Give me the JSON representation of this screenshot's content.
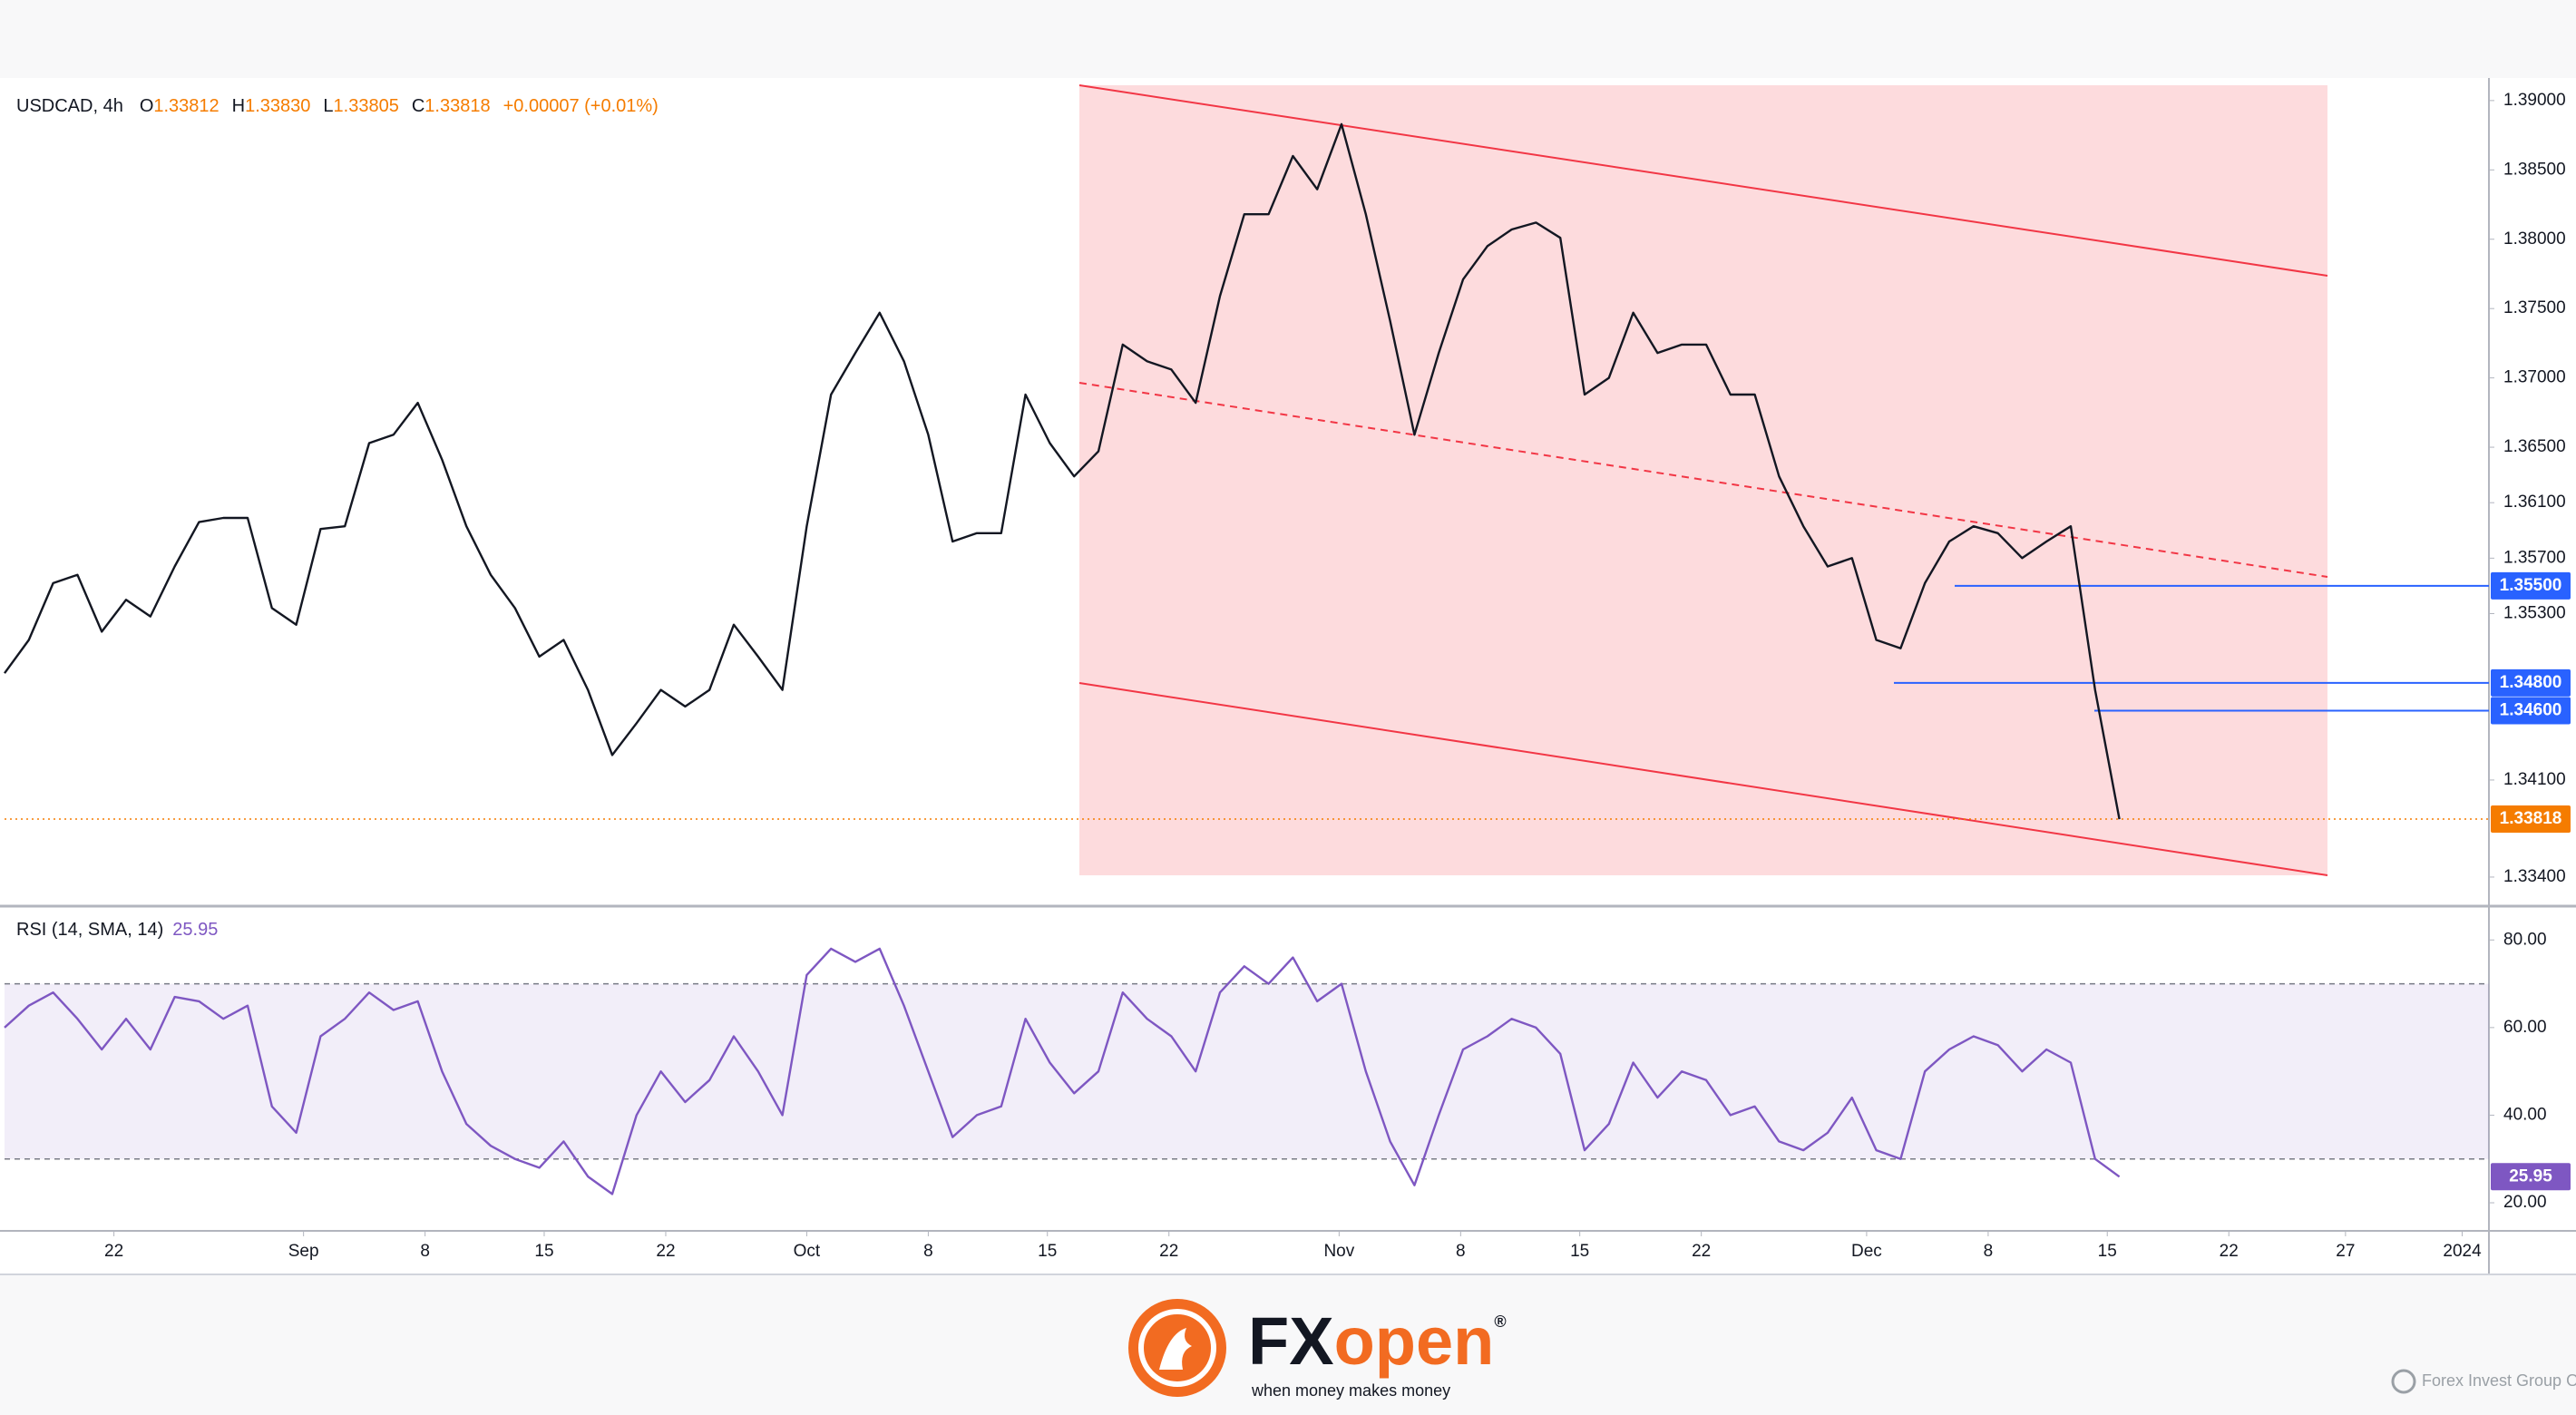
{
  "chart_data": [
    {
      "type": "line",
      "title": "USDCAD, 4h",
      "ohlc": [
        {
          "label": "O",
          "value": "1.33812"
        },
        {
          "label": "H",
          "value": "1.33830"
        },
        {
          "label": "L",
          "value": "1.33805"
        },
        {
          "label": "C",
          "value": "1.33818"
        }
      ],
      "change": "+0.00007 (+0.01%)",
      "x": [
        0,
        1,
        2,
        3,
        4,
        5,
        6,
        7,
        8,
        9,
        10,
        11,
        12,
        13,
        14,
        15,
        16,
        17,
        18,
        19,
        20,
        21,
        22,
        23,
        24,
        25,
        26,
        27,
        28,
        29,
        30,
        31,
        32,
        33,
        34,
        35,
        36,
        37,
        38,
        39,
        40,
        41,
        42,
        43,
        44,
        45,
        46,
        47,
        48,
        49,
        50,
        51,
        52,
        53,
        54,
        55,
        56,
        57,
        58,
        59,
        60,
        61,
        62,
        63,
        64,
        65,
        66,
        67,
        68,
        69,
        70,
        71,
        72,
        73,
        74,
        75,
        76,
        77,
        78,
        79,
        80,
        81,
        82,
        83,
        84,
        85,
        86,
        87
      ],
      "values": [
        1.3487,
        1.3511,
        1.3552,
        1.3558,
        1.3517,
        1.354,
        1.3528,
        1.3564,
        1.3596,
        1.3599,
        1.3599,
        1.3534,
        1.3522,
        1.3591,
        1.3593,
        1.3653,
        1.3659,
        1.3682,
        1.3641,
        1.3593,
        1.3558,
        1.3534,
        1.3499,
        1.3511,
        1.3475,
        1.3428,
        1.3451,
        1.3475,
        1.3463,
        1.3475,
        1.3522,
        1.3499,
        1.3475,
        1.3593,
        1.3688,
        1.3718,
        1.3747,
        1.3712,
        1.3659,
        1.3582,
        1.3588,
        1.3588,
        1.3688,
        1.3653,
        1.3629,
        1.3647,
        1.3724,
        1.3712,
        1.3706,
        1.3682,
        1.3759,
        1.3818,
        1.3818,
        1.386,
        1.3836,
        1.3883,
        1.3818,
        1.3741,
        1.3659,
        1.3718,
        1.3771,
        1.3795,
        1.3807,
        1.3812,
        1.3801,
        1.3688,
        1.37,
        1.3747,
        1.3718,
        1.3724,
        1.3724,
        1.3688,
        1.3688,
        1.3629,
        1.3593,
        1.3564,
        1.357,
        1.3511,
        1.3505,
        1.3552,
        1.3582,
        1.3593,
        1.3588,
        1.357,
        1.3582,
        1.3593,
        1.3475,
        1.33818
      ],
      "color": "#131722",
      "xlim": [
        0,
        102.2
      ],
      "ylim": [
        1.3321,
        1.3913
      ],
      "yticks": [
        {
          "value": 1.39,
          "label": "1.39000"
        },
        {
          "value": 1.385,
          "label": "1.38500"
        },
        {
          "value": 1.38,
          "label": "1.38000"
        },
        {
          "value": 1.375,
          "label": "1.37500"
        },
        {
          "value": 1.37,
          "label": "1.37000"
        },
        {
          "value": 1.365,
          "label": "1.36500"
        },
        {
          "value": 1.361,
          "label": "1.36100"
        },
        {
          "value": 1.357,
          "label": "1.35700"
        },
        {
          "value": 1.353,
          "label": "1.35300"
        },
        {
          "value": 1.341,
          "label": "1.34100"
        },
        {
          "value": 1.334,
          "label": "1.33400"
        }
      ],
      "levels": [
        {
          "value": 1.355,
          "label": "1.35500"
        },
        {
          "value": 1.348,
          "label": "1.34800"
        },
        {
          "value": 1.346,
          "label": "1.34600"
        }
      ],
      "level_color": "#2962ff",
      "last_price": {
        "value": 1.33818,
        "label": "1.33818"
      },
      "last_color": "#f57c00"
    },
    {
      "type": "line",
      "title": "RSI (14, SMA, 14)",
      "x": [
        0,
        1,
        2,
        3,
        4,
        5,
        6,
        7,
        8,
        9,
        10,
        11,
        12,
        13,
        14,
        15,
        16,
        17,
        18,
        19,
        20,
        21,
        22,
        23,
        24,
        25,
        26,
        27,
        28,
        29,
        30,
        31,
        32,
        33,
        34,
        35,
        36,
        37,
        38,
        39,
        40,
        41,
        42,
        43,
        44,
        45,
        46,
        47,
        48,
        49,
        50,
        51,
        52,
        53,
        54,
        55,
        56,
        57,
        58,
        59,
        60,
        61,
        62,
        63,
        64,
        65,
        66,
        67,
        68,
        69,
        70,
        71,
        72,
        73,
        74,
        75,
        76,
        77,
        78,
        79,
        80,
        81,
        82,
        83,
        84,
        85,
        86,
        87
      ],
      "values": [
        60,
        65,
        68,
        62,
        55,
        62,
        55,
        67,
        66,
        62,
        65,
        42,
        36,
        58,
        62,
        68,
        64,
        66,
        50,
        38,
        33,
        30,
        28,
        34,
        26,
        22,
        40,
        50,
        43,
        48,
        58,
        50,
        40,
        72,
        78,
        75,
        78,
        65,
        50,
        35,
        40,
        42,
        62,
        52,
        45,
        50,
        68,
        62,
        58,
        50,
        68,
        74,
        70,
        76,
        66,
        70,
        50,
        34,
        24,
        40,
        55,
        58,
        62,
        60,
        54,
        32,
        38,
        52,
        44,
        50,
        48,
        40,
        42,
        34,
        32,
        36,
        44,
        32,
        30,
        50,
        55,
        58,
        56,
        50,
        55,
        52,
        30,
        25.95
      ],
      "color": "#7e57c2",
      "last": {
        "value": 25.95,
        "label": "25.95"
      },
      "upper_band": 70,
      "lower_band": 30,
      "xlim": [
        0,
        102.2
      ],
      "ylim": [
        14,
        87.1
      ],
      "yticks": [
        {
          "value": 80,
          "label": "80.00"
        },
        {
          "value": 60,
          "label": "60.00"
        },
        {
          "value": 40,
          "label": "40.00"
        },
        {
          "value": 20,
          "label": "20.00"
        }
      ],
      "xticks": [
        {
          "value": 4.5,
          "label": "22"
        },
        {
          "value": 12.3,
          "label": "Sep"
        },
        {
          "value": 17.3,
          "label": "8"
        },
        {
          "value": 22.2,
          "label": "15"
        },
        {
          "value": 27.2,
          "label": "22"
        },
        {
          "value": 33.0,
          "label": "Oct"
        },
        {
          "value": 38.0,
          "label": "8"
        },
        {
          "value": 42.9,
          "label": "15"
        },
        {
          "value": 47.9,
          "label": "22"
        },
        {
          "value": 54.9,
          "label": "Nov"
        },
        {
          "value": 59.9,
          "label": "8"
        },
        {
          "value": 64.8,
          "label": "15"
        },
        {
          "value": 69.8,
          "label": "22"
        },
        {
          "value": 76.6,
          "label": "Dec"
        },
        {
          "value": 81.6,
          "label": "8"
        },
        {
          "value": 86.5,
          "label": "15"
        },
        {
          "value": 91.5,
          "label": "22"
        },
        {
          "value": 96.3,
          "label": "27"
        },
        {
          "value": 101.1,
          "label": "2024"
        }
      ]
    }
  ],
  "footer": {
    "brand": [
      "FX",
      "open"
    ],
    "mark": "®",
    "tagline": "when money makes money",
    "company": "Forex Invest Group OU"
  }
}
